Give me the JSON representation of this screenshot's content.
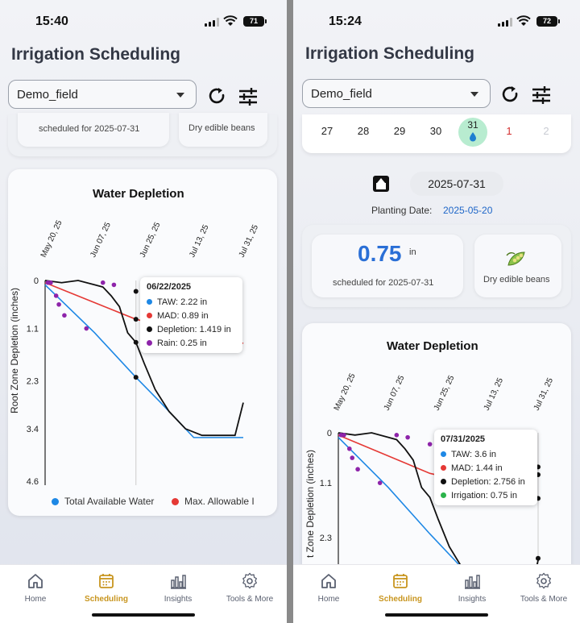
{
  "app": {
    "title": "Irrigation Scheduling",
    "field_value": "Demo_field"
  },
  "left": {
    "time": "15:40",
    "battery": "71",
    "summary_partial": {
      "scheduled_text": "scheduled for 2025-07-31",
      "crop_text": "Dry edible beans"
    },
    "chart": {
      "title": "Water Depletion",
      "ylabel": "Root Zone Depletion (inches)",
      "x_ticks": [
        "May 20, 25",
        "Jun 07, 25",
        "Jun 25, 25",
        "Jul 13, 25",
        "Jul 31, 25"
      ],
      "y_ticks": [
        "0",
        "1.1",
        "2.3",
        "3.4",
        "4.6"
      ],
      "tooltip": {
        "date": "06/22/2025",
        "rows": [
          {
            "label": "TAW: 2.22 in",
            "color": "#1e88e5"
          },
          {
            "label": "MAD: 0.89 in",
            "color": "#e53935"
          },
          {
            "label": "Depletion: 1.419 in",
            "color": "#111111"
          },
          {
            "label": "Rain: 0.25 in",
            "color": "#8e24aa"
          }
        ]
      },
      "legend": [
        {
          "label": "Total Available Water",
          "color": "#1e88e5"
        },
        {
          "label": "Max. Allowable I",
          "color": "#e53935"
        }
      ]
    }
  },
  "right": {
    "time": "15:24",
    "battery": "72",
    "calendar_days": [
      {
        "day": "27",
        "color": "#222"
      },
      {
        "day": "28",
        "color": "#222"
      },
      {
        "day": "29",
        "color": "#222"
      },
      {
        "day": "30",
        "color": "#222"
      },
      {
        "day": "31",
        "color": "#222",
        "selected": true
      },
      {
        "day": "1",
        "color": "#d32f2f"
      },
      {
        "day": "2",
        "color": "#c9ccd3"
      }
    ],
    "selected_date": "2025-07-31",
    "planting_label": "Planting Date:",
    "planting_date": "2025-05-20",
    "amount_value": "0.75",
    "amount_unit": "in",
    "scheduled_text": "scheduled for 2025-07-31",
    "crop_text": "Dry edible beans",
    "chart": {
      "title": "Water Depletion",
      "ylabel": "t Zone Depletion (inches)",
      "x_ticks": [
        "May 20, 25",
        "Jun 07, 25",
        "Jun 25, 25",
        "Jul 13, 25",
        "Jul 31, 25"
      ],
      "y_ticks": [
        "0",
        "1.1",
        "2.3"
      ],
      "tooltip": {
        "date": "07/31/2025",
        "rows": [
          {
            "label": "TAW: 3.6 in",
            "color": "#1e88e5"
          },
          {
            "label": "MAD: 1.44 in",
            "color": "#e53935"
          },
          {
            "label": "Depletion: 2.756 in",
            "color": "#111111"
          },
          {
            "label": "Irrigation: 0.75 in",
            "color": "#2bb34a"
          }
        ]
      }
    }
  },
  "tabs": [
    {
      "label": "Home",
      "icon": "home-icon"
    },
    {
      "label": "Scheduling",
      "icon": "calendar-icon",
      "active": true
    },
    {
      "label": "Insights",
      "icon": "bar-chart-icon"
    },
    {
      "label": "Tools & More",
      "icon": "gear-icon"
    }
  ],
  "chart_data": [
    {
      "type": "line",
      "title": "Water Depletion",
      "xlabel": "",
      "ylabel": "Root Zone Depletion (inches)",
      "x_range": [
        "2025-05-20",
        "2025-07-31"
      ],
      "ylim": [
        4.6,
        0
      ],
      "series": [
        {
          "name": "Total Available Water",
          "color": "#1e88e5",
          "x": [
            "2025-05-20",
            "2025-06-07",
            "2025-06-22",
            "2025-07-01",
            "2025-07-13",
            "2025-07-31"
          ],
          "y": [
            0.1,
            1.2,
            2.22,
            2.8,
            3.6,
            3.6
          ]
        },
        {
          "name": "Max. Allowable Depletion",
          "color": "#e53935",
          "x": [
            "2025-05-20",
            "2025-06-22",
            "2025-07-31"
          ],
          "y": [
            0.05,
            0.89,
            1.44
          ]
        },
        {
          "name": "Depletion",
          "color": "#111111",
          "x": [
            "2025-05-20",
            "2025-05-26",
            "2025-06-01",
            "2025-06-07",
            "2025-06-10",
            "2025-06-13",
            "2025-06-16",
            "2025-06-19",
            "2025-06-22",
            "2025-06-25",
            "2025-06-29",
            "2025-07-04",
            "2025-07-10",
            "2025-07-16",
            "2025-07-22",
            "2025-07-28",
            "2025-07-31"
          ],
          "y": [
            0.0,
            0.05,
            0.0,
            0.1,
            0.15,
            0.35,
            0.6,
            1.2,
            1.419,
            1.9,
            2.5,
            3.0,
            3.4,
            3.55,
            3.55,
            3.55,
            2.8
          ]
        },
        {
          "name": "Rain",
          "color": "#8e24aa",
          "x": [
            "2025-05-21",
            "2025-05-22",
            "2025-05-24",
            "2025-05-25",
            "2025-05-27",
            "2025-06-04",
            "2025-06-10",
            "2025-06-14",
            "2025-06-22"
          ],
          "y": [
            0.05,
            0.05,
            0.35,
            0.55,
            0.8,
            1.1,
            0.05,
            0.1,
            0.25
          ]
        }
      ]
    }
  ]
}
